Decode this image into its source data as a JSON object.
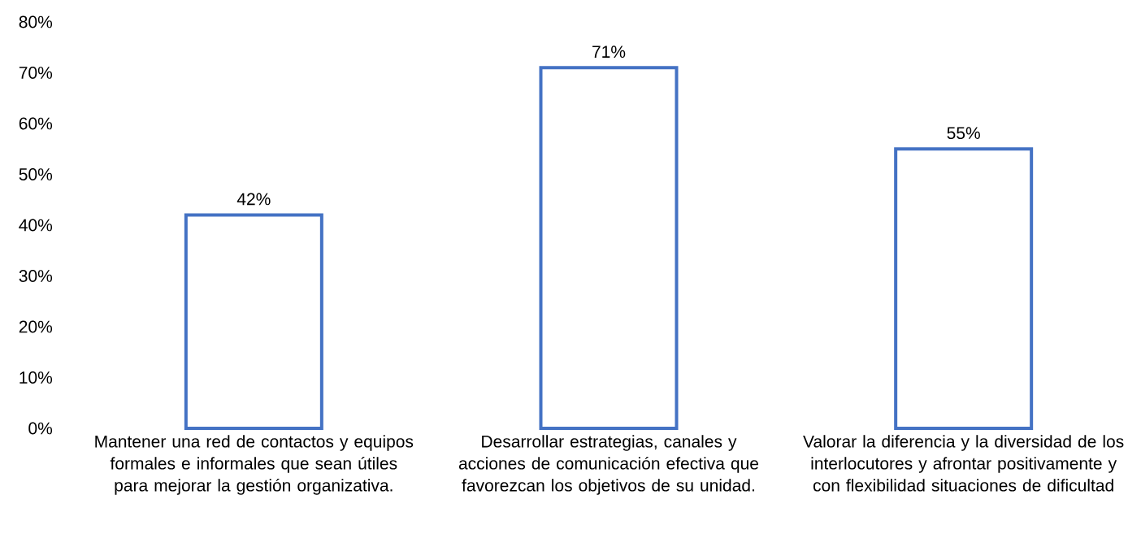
{
  "chart_data": {
    "type": "bar",
    "categories": [
      "Mantener una red de contactos y equipos formales e informales que sean útiles para mejorar la gestión organizativa.",
      "Desarrollar estrategias, canales y acciones de comunicación efectiva que favorezcan los objetivos de su unidad.",
      "Valorar la diferencia y la diversidad de los interlocutores y afrontar positivamente y con flexibilidad situaciones de dificultad"
    ],
    "values": [
      42,
      71,
      55
    ],
    "value_labels": [
      "42%",
      "71%",
      "55%"
    ],
    "color": "#4472c4",
    "ylim": [
      0,
      80
    ],
    "yticks": [
      {
        "value": 0,
        "label": "0%"
      },
      {
        "value": 10,
        "label": "10%"
      },
      {
        "value": 20,
        "label": "20%"
      },
      {
        "value": 30,
        "label": "30%"
      },
      {
        "value": 40,
        "label": "40%"
      },
      {
        "value": 50,
        "label": "50%"
      },
      {
        "value": 60,
        "label": "60%"
      },
      {
        "value": 70,
        "label": "70%"
      },
      {
        "value": 80,
        "label": "80%"
      }
    ],
    "grid": false
  }
}
